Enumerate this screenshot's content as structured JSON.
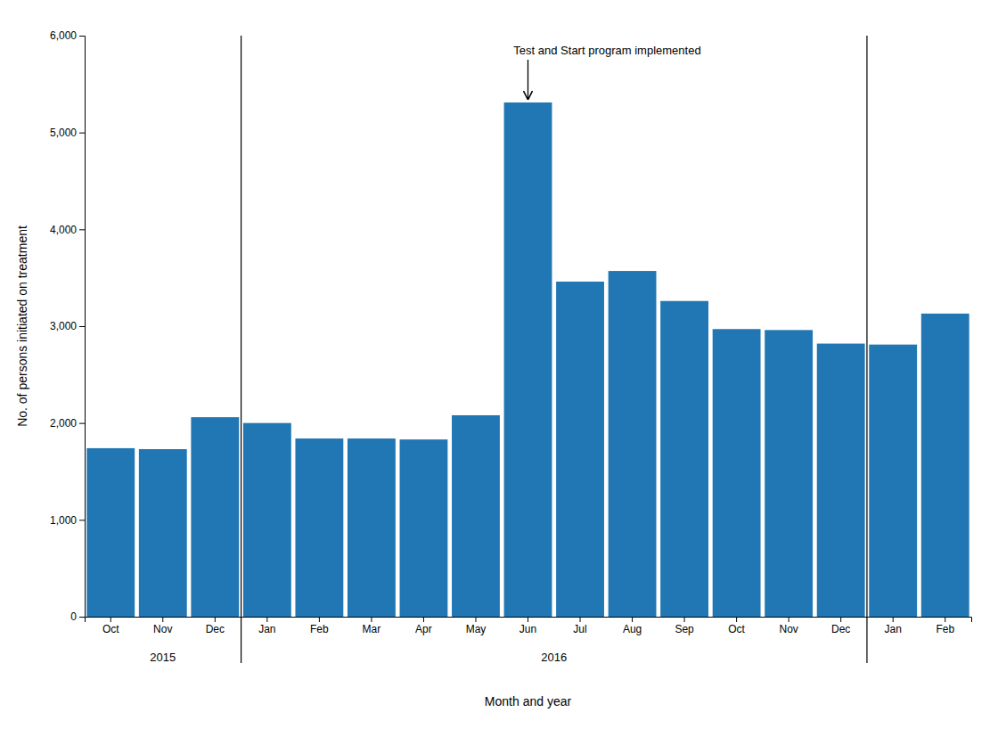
{
  "chart_data": {
    "type": "bar",
    "categories": [
      "Oct",
      "Nov",
      "Dec",
      "Jan",
      "Feb",
      "Mar",
      "Apr",
      "May",
      "Jun",
      "Jul",
      "Aug",
      "Sep",
      "Oct",
      "Nov",
      "Dec",
      "Jan",
      "Feb"
    ],
    "values": [
      1740,
      1730,
      2060,
      2000,
      1840,
      1840,
      1830,
      2080,
      5310,
      3460,
      3570,
      3260,
      2970,
      2960,
      2820,
      2810,
      3130
    ],
    "color": "#2077b4",
    "x_label": "Month and year",
    "y_label": "No. of persons initiated on treatment",
    "ylim": [
      0,
      6000
    ],
    "yticks": [
      0,
      {
        "value": 1000,
        "label": "1,000"
      },
      {
        "value": 2000,
        "label": "2,000"
      },
      {
        "value": 3000,
        "label": "3,000"
      },
      {
        "value": 4000,
        "label": "4,000"
      },
      {
        "value": 5000,
        "label": "5,000"
      },
      {
        "value": 6000,
        "label": "6,000"
      }
    ],
    "category_groups": [
      {
        "label": "2015",
        "from": 0,
        "to": 2
      },
      {
        "label": "2016",
        "from": 3,
        "to": 14
      }
    ],
    "annotations": [
      {
        "text": "Test and Start program implemented",
        "category": "Jun",
        "y": 5310
      }
    ],
    "grid": false
  }
}
